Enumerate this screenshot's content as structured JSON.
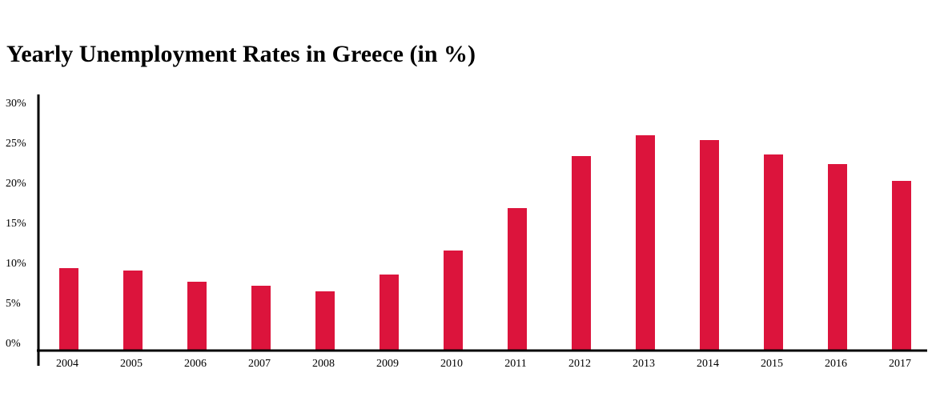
{
  "chart_data": {
    "type": "bar",
    "title": "Yearly Unemployment Rates in Greece (in %)",
    "xlabel": "",
    "ylabel": "",
    "categories": [
      "2004",
      "2005",
      "2006",
      "2007",
      "2008",
      "2009",
      "2010",
      "2011",
      "2012",
      "2013",
      "2014",
      "2015",
      "2016",
      "2017"
    ],
    "values": [
      10.2,
      9.9,
      8.5,
      8.0,
      7.3,
      9.4,
      12.4,
      17.7,
      24.2,
      26.8,
      26.2,
      24.4,
      23.2,
      21.1
    ],
    "ylim": [
      0,
      30
    ],
    "yticks": [
      0,
      5,
      10,
      15,
      20,
      25,
      30
    ],
    "ytick_labels": [
      "0%",
      "5%",
      "10%",
      "15%",
      "20%",
      "25%",
      "30%"
    ],
    "bar_color": "#dc143c",
    "grid": false,
    "legend": "none"
  }
}
